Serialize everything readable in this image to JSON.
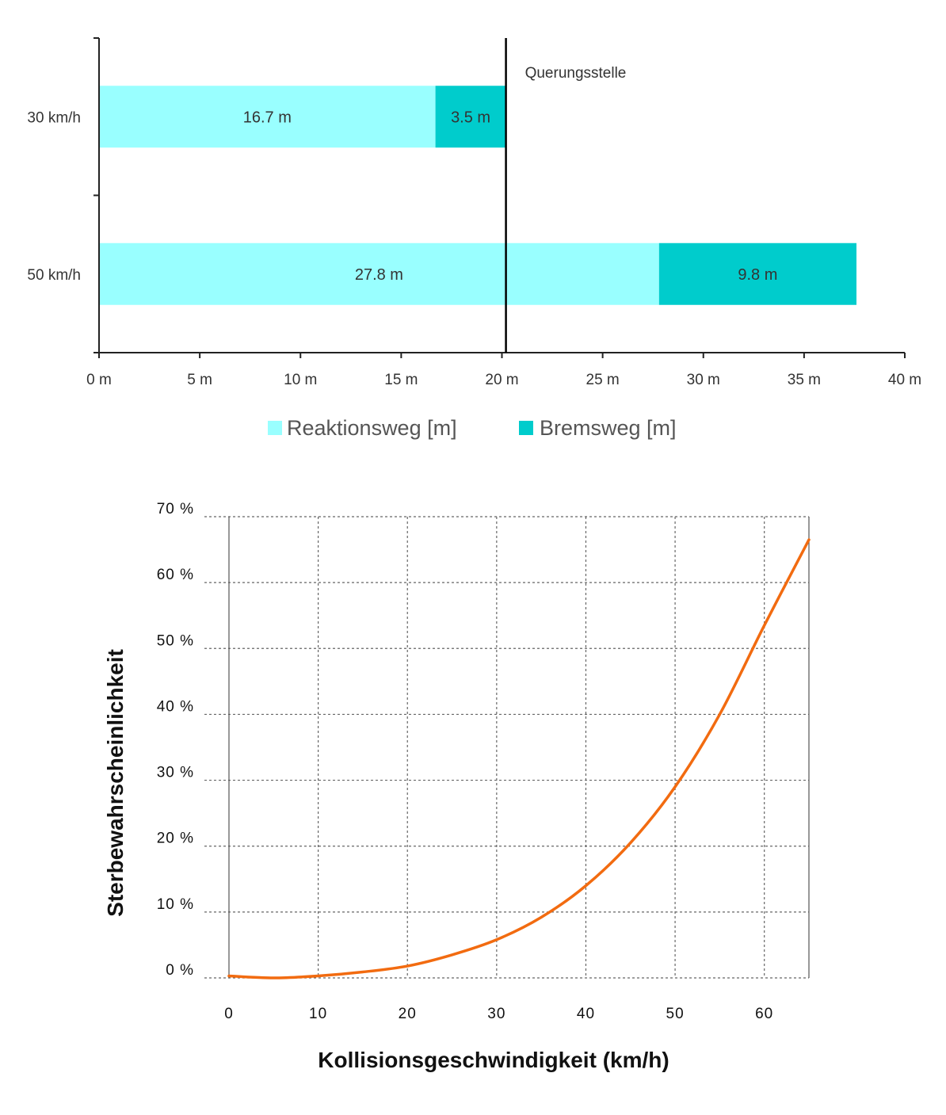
{
  "colors": {
    "reaktion": "#99FFFF",
    "brems": "#00CCCC",
    "curve": "#F26B10",
    "axis": "#222222",
    "grid": "#666666"
  },
  "chart_data": [
    {
      "type": "bar",
      "orientation": "horizontal",
      "stacked": true,
      "categories": [
        "30 km/h",
        "50 km/h"
      ],
      "series": [
        {
          "name": "Reaktionsweg [m]",
          "values": [
            16.7,
            27.8
          ],
          "labels": [
            "16.7 m",
            "27.8 m"
          ]
        },
        {
          "name": "Bremsweg [m]",
          "values": [
            3.5,
            9.8
          ],
          "labels": [
            "3.5 m",
            "9.8 m"
          ]
        }
      ],
      "xlim": [
        0,
        40
      ],
      "xticks": [
        0,
        5,
        10,
        15,
        20,
        25,
        30,
        35,
        40
      ],
      "xtick_labels": [
        "0 m",
        "5 m",
        "10 m",
        "15 m",
        "20 m",
        "25 m",
        "30 m",
        "35 m",
        "40 m"
      ],
      "reference_line": {
        "x": 20.2,
        "label": "Querungsstelle"
      },
      "legend": "bottom-center",
      "grid": false
    },
    {
      "type": "line",
      "x": [
        0,
        5,
        10,
        15,
        20,
        25,
        30,
        35,
        40,
        45,
        50,
        55,
        60,
        65
      ],
      "y": [
        0.3,
        0.0,
        0.3,
        0.9,
        1.8,
        3.5,
        5.8,
        9.2,
        14.0,
        20.5,
        29.0,
        40.0,
        53.5,
        66.5
      ],
      "xlim": [
        0,
        65
      ],
      "ylim": [
        0,
        70
      ],
      "xticks": [
        0,
        10,
        20,
        30,
        40,
        50,
        60
      ],
      "yticks": [
        0,
        10,
        20,
        30,
        40,
        50,
        60,
        70
      ],
      "ytick_labels": [
        "0 %",
        "10 %",
        "20 %",
        "30 %",
        "40 %",
        "50 %",
        "60 %",
        "70 %"
      ],
      "xlabel": "Kollisionsgeschwindigkeit (km/h)",
      "ylabel": "Sterbewahrscheinlichkeit",
      "grid": true,
      "grid_style": "dashed"
    }
  ]
}
